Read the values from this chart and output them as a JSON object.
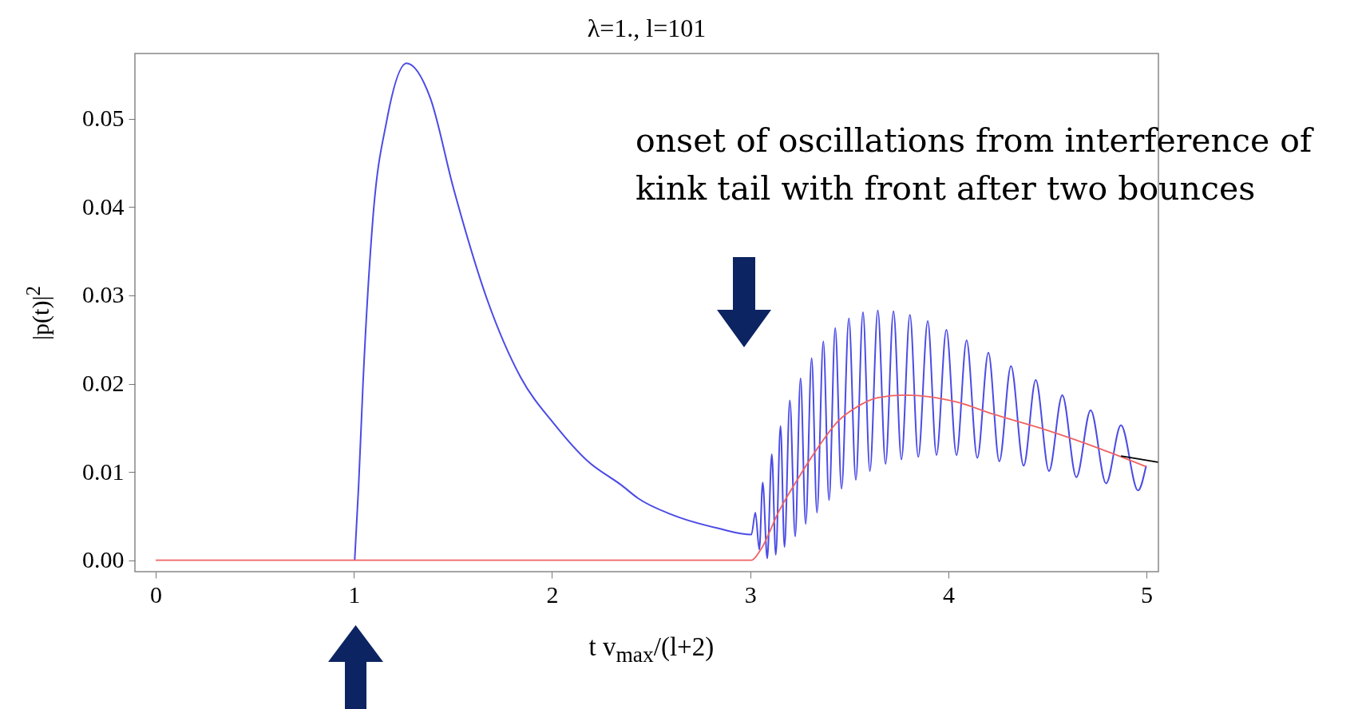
{
  "chart_data": {
    "type": "line",
    "title": "λ=1., l=101",
    "xlabel": "t v$_{max}$/(l+2)",
    "ylabel": "|p(t)|$^{2}$",
    "annotations": [
      "onset of oscillations from interference of kink tail with front after two bounces"
    ],
    "xlim": [
      -0.105,
      5.06
    ],
    "ylim": [
      -0.0013,
      0.0574
    ],
    "xticks": [
      0,
      1,
      2,
      3,
      4,
      5
    ],
    "yticks": [
      {
        "value": 0,
        "label": "0.00"
      },
      0.01,
      0.02,
      0.03,
      0.04,
      0.05
    ],
    "line_style": "solid",
    "series": [
      {
        "color": "#4b4be6",
        "x": [
          1.004,
          1.024,
          1.046,
          1.097,
          1.165,
          1.266,
          1.385,
          1.503,
          1.673,
          1.842,
          2.012,
          2.181,
          2.35,
          2.435,
          2.6,
          2.84,
          3.006,
          3.026,
          3.046,
          3.063,
          3.086,
          3.109,
          3.129,
          3.153,
          3.173,
          3.2,
          3.227,
          3.254,
          3.28,
          3.31,
          3.337,
          3.369,
          3.398,
          3.429,
          3.461,
          3.498,
          3.533,
          3.569,
          3.604,
          3.644,
          3.683,
          3.723,
          3.763,
          3.806,
          3.848,
          3.896,
          3.94,
          3.99,
          4.041,
          4.092,
          4.146,
          4.202,
          4.257,
          4.316,
          4.38,
          4.441,
          4.508,
          4.575,
          4.646,
          4.718,
          4.796,
          4.871,
          4.957,
          4.998
        ],
        "values": [
          0,
          0.0085,
          0.02,
          0.039,
          0.0497,
          0.0563,
          0.0524,
          0.0421,
          0.0295,
          0.0207,
          0.0154,
          0.0112,
          0.0085,
          0.007,
          0.0052,
          0.0036,
          0.0029,
          0.0054,
          0.0012,
          0.0088,
          0.0002,
          0.012,
          0.0006,
          0.0152,
          0.0015,
          0.0181,
          0.0027,
          0.0206,
          0.0041,
          0.0229,
          0.0054,
          0.0248,
          0.0068,
          0.0263,
          0.0081,
          0.0274,
          0.0091,
          0.0281,
          0.0101,
          0.0283,
          0.0109,
          0.0282,
          0.0114,
          0.0278,
          0.0117,
          0.0271,
          0.0119,
          0.0261,
          0.0119,
          0.0249,
          0.0116,
          0.0235,
          0.0112,
          0.022,
          0.0107,
          0.0204,
          0.0101,
          0.0187,
          0.0094,
          0.017,
          0.0087,
          0.0153,
          0.0079,
          0.0107
        ]
      },
      {
        "color": "#f06262",
        "x": [
          0,
          3.006,
          3.053,
          3.146,
          3.24,
          3.334,
          3.441,
          3.549,
          3.643,
          3.777,
          3.911,
          4.045,
          4.233,
          4.501,
          4.769,
          4.998
        ],
        "values": [
          0,
          0,
          0.0012,
          0.0056,
          0.0092,
          0.0125,
          0.0157,
          0.0175,
          0.0184,
          0.0187,
          0.0185,
          0.0179,
          0.0165,
          0.0147,
          0.0126,
          0.0106
        ]
      },
      {
        "color": "#000000",
        "x": [
          4.871,
          5.058
        ],
        "values": [
          0.0118,
          0.0111
        ]
      }
    ]
  }
}
